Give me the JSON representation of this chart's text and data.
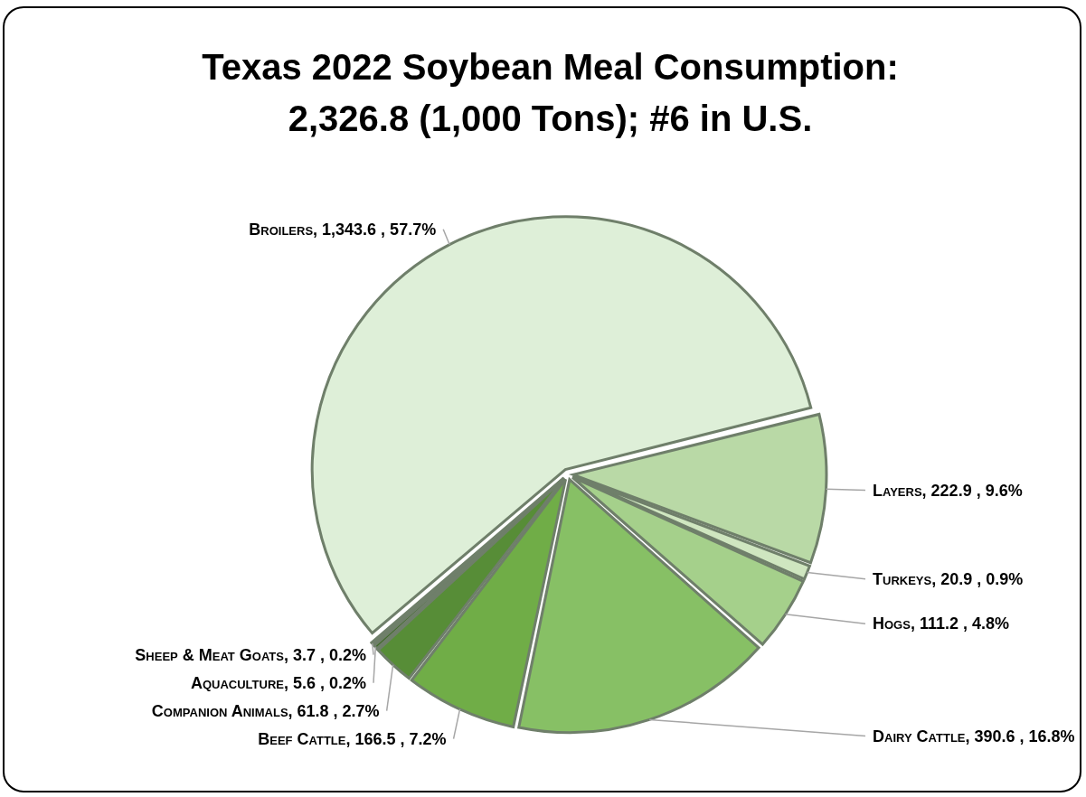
{
  "chart_data": {
    "type": "pie",
    "title": "Texas 2022 Soybean Meal Consumption:\n2,326.8 (1,000 Tons); #6 in U.S.",
    "categories": [
      "Layers",
      "Turkeys",
      "Hogs",
      "Dairy Cattle",
      "Beef Cattle",
      "Companion Animals",
      "Aquaculture",
      "Sheep & Meat Goats",
      "Broilers"
    ],
    "values": [
      222.9,
      20.9,
      111.2,
      390.6,
      166.5,
      61.8,
      5.6,
      3.7,
      1343.6
    ],
    "value_labels": [
      ", 222.9 , 9.6%",
      ", 20.9 , 0.9%",
      ", 111.2 , 4.8%",
      ", 390.6 , 16.8%",
      ", 166.5 , 7.2%",
      ", 61.8 , 2.7%",
      ", 5.6 , 0.2%",
      ", 3.7 , 0.2%",
      ", 1,343.6 , 57.7%"
    ],
    "colors": [
      "#b9d9a6",
      "#cfe6c0",
      "#a5d08b",
      "#87c065",
      "#70ad47",
      "#578d37",
      "#3f6b27",
      "#6f9c4f",
      "#deefd8"
    ]
  }
}
